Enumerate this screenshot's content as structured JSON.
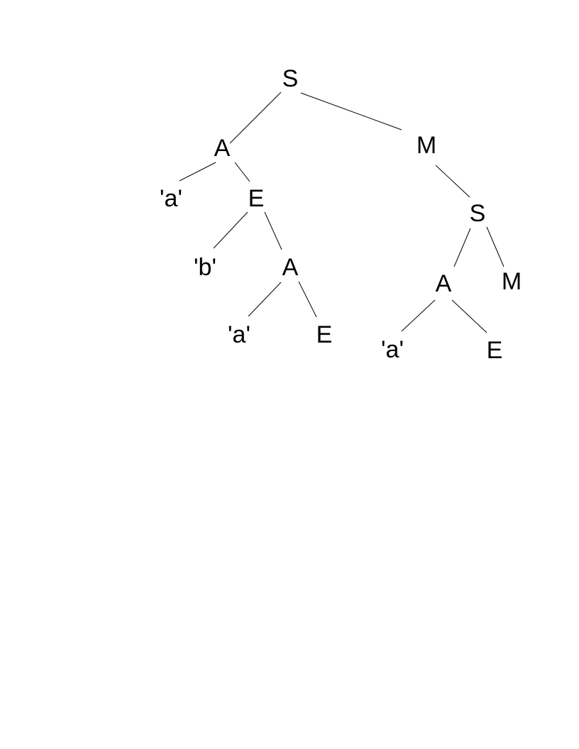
{
  "tree": {
    "nodes": [
      {
        "id": "n1",
        "label": "S"
      },
      {
        "id": "n2",
        "label": "A"
      },
      {
        "id": "n3",
        "label": "M"
      },
      {
        "id": "n4",
        "label": "'a'"
      },
      {
        "id": "n5",
        "label": "E"
      },
      {
        "id": "n6",
        "label": "'b'"
      },
      {
        "id": "n7",
        "label": "A"
      },
      {
        "id": "n8",
        "label": "'a'"
      },
      {
        "id": "n9",
        "label": "E"
      },
      {
        "id": "n10",
        "label": "S"
      },
      {
        "id": "n11",
        "label": "A"
      },
      {
        "id": "n12",
        "label": "M"
      },
      {
        "id": "n13",
        "label": "'a'"
      },
      {
        "id": "n14",
        "label": "E"
      }
    ],
    "edges": [
      {
        "from": "n1",
        "to": "n2"
      },
      {
        "from": "n1",
        "to": "n3"
      },
      {
        "from": "n2",
        "to": "n4"
      },
      {
        "from": "n2",
        "to": "n5"
      },
      {
        "from": "n5",
        "to": "n6"
      },
      {
        "from": "n5",
        "to": "n7"
      },
      {
        "from": "n7",
        "to": "n8"
      },
      {
        "from": "n7",
        "to": "n9"
      },
      {
        "from": "n3",
        "to": "n10"
      },
      {
        "from": "n10",
        "to": "n11"
      },
      {
        "from": "n10",
        "to": "n12"
      },
      {
        "from": "n11",
        "to": "n13"
      },
      {
        "from": "n11",
        "to": "n14"
      }
    ]
  }
}
